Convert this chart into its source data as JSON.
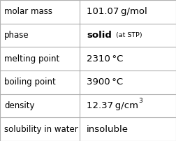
{
  "rows": [
    {
      "label": "molar mass",
      "value_parts": [
        {
          "text": "101.07 g/mol",
          "style": "normal"
        }
      ]
    },
    {
      "label": "phase",
      "value_parts": [
        {
          "text": "solid",
          "style": "bold"
        },
        {
          "text": "  (at STP)",
          "style": "small"
        }
      ]
    },
    {
      "label": "melting point",
      "value_parts": [
        {
          "text": "2310 °C",
          "style": "normal"
        }
      ]
    },
    {
      "label": "boiling point",
      "value_parts": [
        {
          "text": "3900 °C",
          "style": "normal"
        }
      ]
    },
    {
      "label": "density",
      "value_parts": [
        {
          "text": "12.37 g/cm",
          "style": "normal"
        },
        {
          "text": "3",
          "style": "super"
        }
      ]
    },
    {
      "label": "solubility in water",
      "value_parts": [
        {
          "text": "insoluble",
          "style": "normal"
        }
      ]
    }
  ],
  "col_split": 0.452,
  "bg_color": "#ffffff",
  "border_color": "#b0b0b0",
  "text_color": "#000000",
  "label_fontsize": 8.5,
  "value_fontsize": 9.5,
  "small_fontsize": 6.8,
  "super_fontsize": 6.5,
  "figwidth": 2.52,
  "figheight": 2.02,
  "dpi": 100
}
